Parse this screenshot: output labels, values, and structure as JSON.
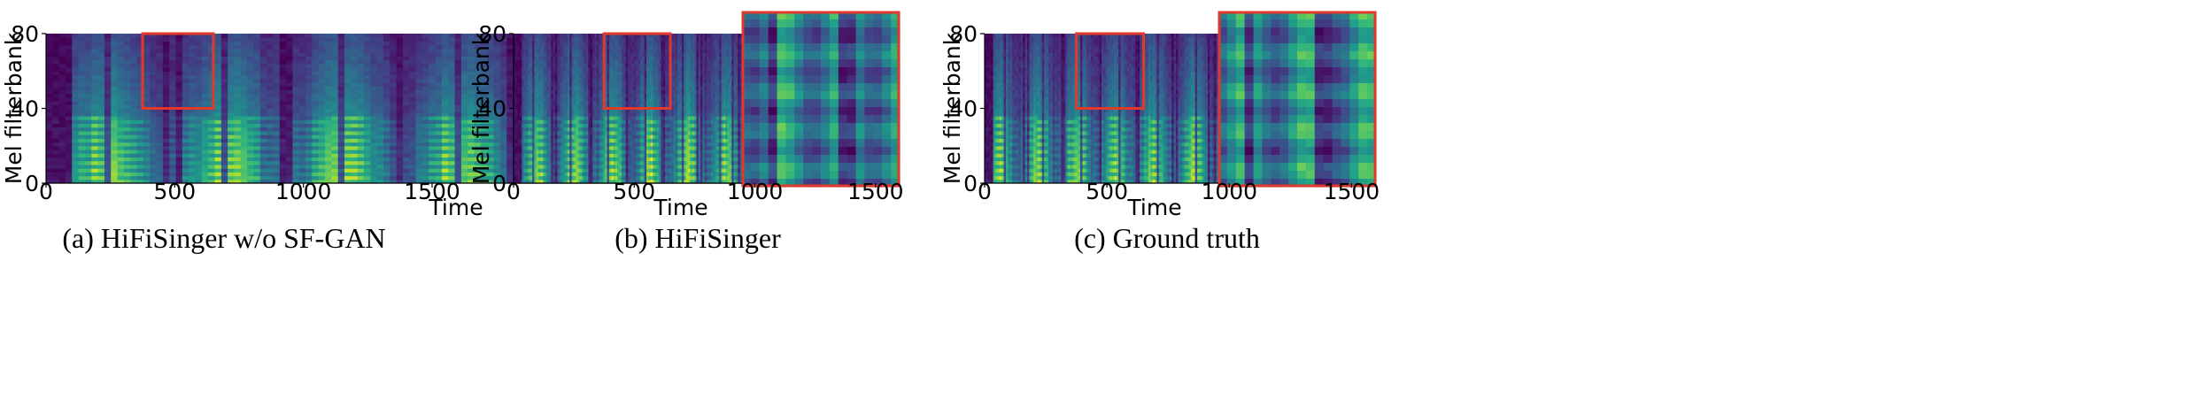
{
  "figure": {
    "colors": {
      "zoom_box": "#e23a2a",
      "background": "#ffffff"
    }
  },
  "chart_data": [
    {
      "type": "heatmap",
      "caption": "(a)   HiFiSinger w/o SF-GAN",
      "xlabel": "Time",
      "ylabel": "Mel filterbank",
      "xticks": [
        "0",
        "500",
        "1000",
        "1500"
      ],
      "yticks": [
        "0",
        "40",
        "80"
      ],
      "xlim": [
        0,
        1500
      ],
      "ylim": [
        0,
        80
      ],
      "zoom_region": {
        "x": [
          375,
          650
        ],
        "y": [
          40,
          80
        ]
      },
      "colormap": "viridis",
      "seed": 11
    },
    {
      "type": "heatmap",
      "caption": "(b) HiFiSinger",
      "xlabel": "Time",
      "ylabel": "Mel filterbank",
      "xticks": [
        "0",
        "500",
        "1000",
        "1500"
      ],
      "yticks": [
        "0",
        "40",
        "80"
      ],
      "xlim": [
        0,
        1600
      ],
      "ylim": [
        0,
        80
      ],
      "zoom_region": {
        "x": [
          375,
          650
        ],
        "y": [
          40,
          80
        ]
      },
      "colormap": "viridis",
      "seed": 23
    },
    {
      "type": "heatmap",
      "caption": "(c) Ground truth",
      "xlabel": "Time",
      "ylabel": "Mel filterbank",
      "xticks": [
        "0",
        "500",
        "1000",
        "1500"
      ],
      "yticks": [
        "0",
        "40",
        "80"
      ],
      "xlim": [
        0,
        1600
      ],
      "ylim": [
        0,
        80
      ],
      "zoom_region": {
        "x": [
          375,
          650
        ],
        "y": [
          40,
          80
        ]
      },
      "colormap": "viridis",
      "seed": 37
    }
  ]
}
